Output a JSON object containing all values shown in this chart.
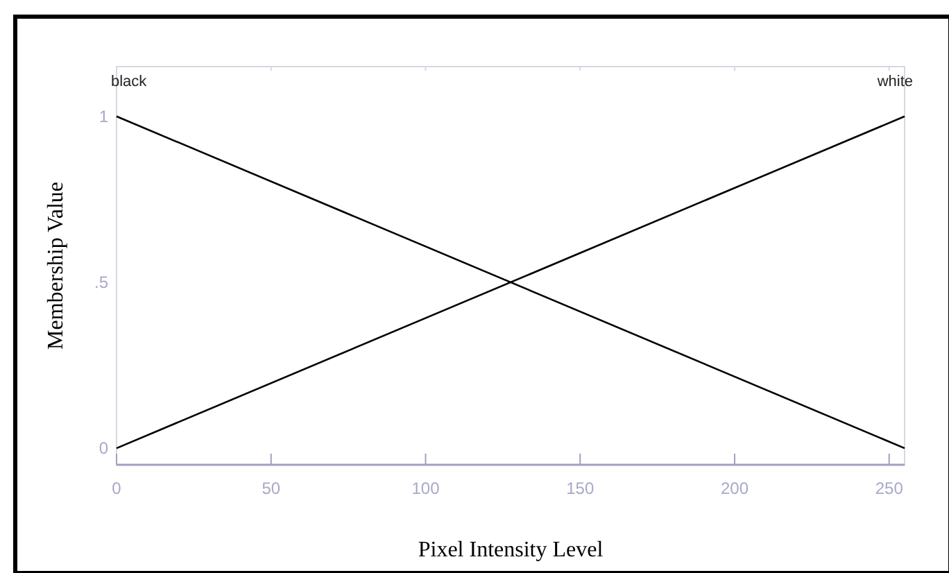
{
  "chart_data": {
    "type": "line",
    "xlabel": "Pixel Intensity Level",
    "ylabel": "Membership Value",
    "x": [
      0,
      255
    ],
    "series": [
      {
        "name": "black",
        "color": "#000000",
        "values": [
          1,
          0
        ]
      },
      {
        "name": "white",
        "color": "#000000",
        "values": [
          0,
          1
        ]
      }
    ],
    "xlim": [
      0,
      255
    ],
    "xticks": [
      0,
      50,
      100,
      150,
      200,
      250
    ],
    "ylim": [
      -0.05,
      1.15
    ],
    "yticks": [
      0,
      {
        "value": 0.5,
        "label": ".5"
      },
      1
    ],
    "grid": false
  }
}
